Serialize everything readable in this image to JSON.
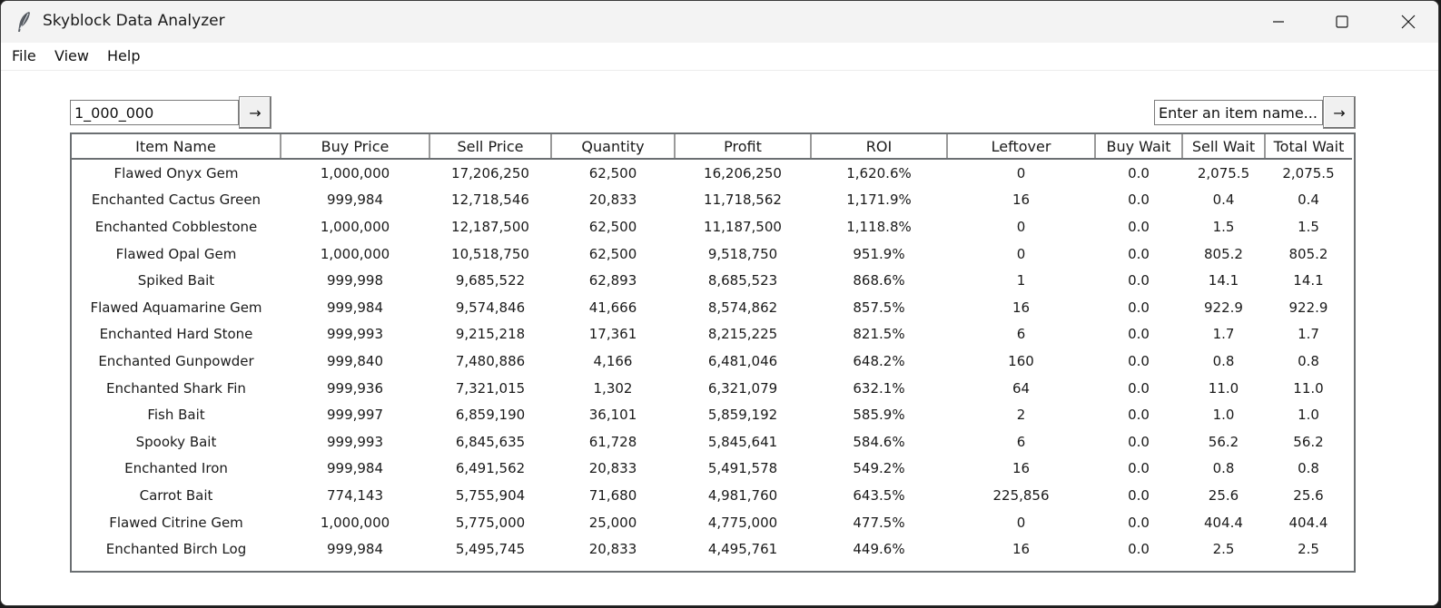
{
  "window": {
    "title": "Skyblock Data Analyzer"
  },
  "menu": [
    "File",
    "View",
    "Help"
  ],
  "controls": {
    "amount_value": "1_000_000",
    "go_label": "→",
    "search_placeholder": "Enter an item name...",
    "search_go_label": "→"
  },
  "table": {
    "columns": [
      "Item Name",
      "Buy Price",
      "Sell Price",
      "Quantity",
      "Profit",
      "ROI",
      "Leftover",
      "Buy Wait",
      "Sell Wait",
      "Total Wait"
    ],
    "rows": [
      [
        "Flawed Onyx Gem",
        "1,000,000",
        "17,206,250",
        "62,500",
        "16,206,250",
        "1,620.6%",
        "0",
        "0.0",
        "2,075.5",
        "2,075.5"
      ],
      [
        "Enchanted Cactus Green",
        "999,984",
        "12,718,546",
        "20,833",
        "11,718,562",
        "1,171.9%",
        "16",
        "0.0",
        "0.4",
        "0.4"
      ],
      [
        "Enchanted Cobblestone",
        "1,000,000",
        "12,187,500",
        "62,500",
        "11,187,500",
        "1,118.8%",
        "0",
        "0.0",
        "1.5",
        "1.5"
      ],
      [
        "Flawed Opal Gem",
        "1,000,000",
        "10,518,750",
        "62,500",
        "9,518,750",
        "951.9%",
        "0",
        "0.0",
        "805.2",
        "805.2"
      ],
      [
        "Spiked Bait",
        "999,998",
        "9,685,522",
        "62,893",
        "8,685,523",
        "868.6%",
        "1",
        "0.0",
        "14.1",
        "14.1"
      ],
      [
        "Flawed Aquamarine Gem",
        "999,984",
        "9,574,846",
        "41,666",
        "8,574,862",
        "857.5%",
        "16",
        "0.0",
        "922.9",
        "922.9"
      ],
      [
        "Enchanted Hard Stone",
        "999,993",
        "9,215,218",
        "17,361",
        "8,215,225",
        "821.5%",
        "6",
        "0.0",
        "1.7",
        "1.7"
      ],
      [
        "Enchanted Gunpowder",
        "999,840",
        "7,480,886",
        "4,166",
        "6,481,046",
        "648.2%",
        "160",
        "0.0",
        "0.8",
        "0.8"
      ],
      [
        "Enchanted Shark Fin",
        "999,936",
        "7,321,015",
        "1,302",
        "6,321,079",
        "632.1%",
        "64",
        "0.0",
        "11.0",
        "11.0"
      ],
      [
        "Fish Bait",
        "999,997",
        "6,859,190",
        "36,101",
        "5,859,192",
        "585.9%",
        "2",
        "0.0",
        "1.0",
        "1.0"
      ],
      [
        "Spooky Bait",
        "999,993",
        "6,845,635",
        "61,728",
        "5,845,641",
        "584.6%",
        "6",
        "0.0",
        "56.2",
        "56.2"
      ],
      [
        "Enchanted Iron",
        "999,984",
        "6,491,562",
        "20,833",
        "5,491,578",
        "549.2%",
        "16",
        "0.0",
        "0.8",
        "0.8"
      ],
      [
        "Carrot Bait",
        "774,143",
        "5,755,904",
        "71,680",
        "4,981,760",
        "643.5%",
        "225,856",
        "0.0",
        "25.6",
        "25.6"
      ],
      [
        "Flawed Citrine Gem",
        "1,000,000",
        "5,775,000",
        "25,000",
        "4,775,000",
        "477.5%",
        "0",
        "0.0",
        "404.4",
        "404.4"
      ],
      [
        "Enchanted Birch Log",
        "999,984",
        "5,495,745",
        "20,833",
        "4,495,761",
        "449.6%",
        "16",
        "0.0",
        "2.5",
        "2.5"
      ]
    ]
  }
}
